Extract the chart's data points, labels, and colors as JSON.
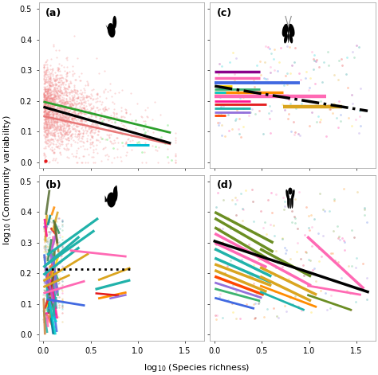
{
  "fig_width": 4.74,
  "fig_height": 4.71,
  "xlim": [
    -0.05,
    1.7
  ],
  "ylim": [
    -0.02,
    0.52
  ],
  "yticks": [
    0.0,
    0.1,
    0.2,
    0.3,
    0.4,
    0.5
  ],
  "xticks": [
    0.0,
    0.5,
    1.0,
    1.5
  ],
  "xlabel": "log$_{10}$ (Species richness)",
  "ylabel": "log$_{10}$ (Community variability)",
  "bg_color": "#ffffff",
  "panel_bg": "#ffffff",
  "spine_color": "#aaaaaa",
  "tick_label_size": 7,
  "axis_label_size": 8,
  "panel_label_size": 9,
  "panel_labels": [
    "(a)",
    "(b)",
    "(c)",
    "(d)"
  ],
  "colors_multi": [
    "#e41a1c",
    "#377eb8",
    "#4daf4a",
    "#984ea3",
    "#ff7f00",
    "#a65628",
    "#f781bf",
    "#999999",
    "#66c2a5",
    "#fc8d62",
    "#8da0cb",
    "#e78ac3",
    "#a6d854",
    "#ffd92f",
    "#e5c494",
    "#00bcd4",
    "#ff69b4",
    "#20b2aa",
    "#daa520",
    "#9370db"
  ]
}
